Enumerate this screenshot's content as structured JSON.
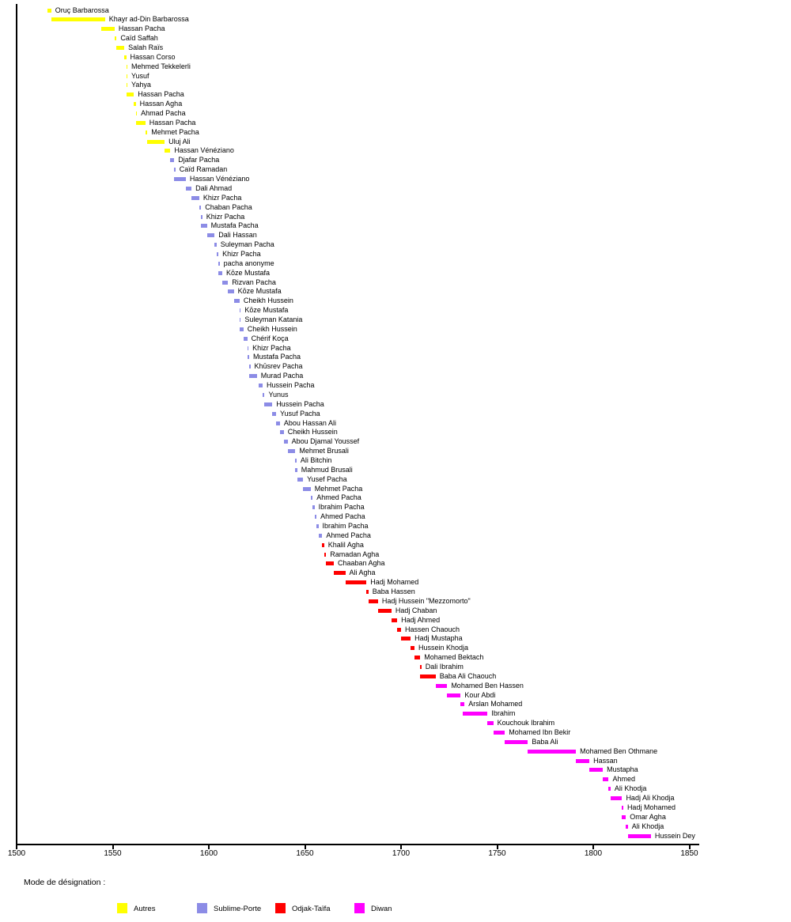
{
  "chart_data": {
    "type": "bar",
    "subtype": "horizontal-gantt-timeline",
    "title": "",
    "xlabel": "",
    "ylabel": "",
    "grid": false,
    "axis": {
      "min": 1500,
      "max": 1850,
      "tick_step": 50,
      "ticks": [
        1500,
        1550,
        1600,
        1650,
        1700,
        1750,
        1800,
        1850
      ]
    },
    "legend_title": "Mode de désignation :",
    "legend_position": "bottom",
    "legend": [
      {
        "label": "Autres",
        "color": "#FFFF00"
      },
      {
        "label": "Sublime-Porte",
        "color": "#8C8CE6"
      },
      {
        "label": "Odjak-Taïfa",
        "color": "#FF0000"
      },
      {
        "label": "Diwan",
        "color": "#FF00FF"
      }
    ],
    "series": [
      {
        "name": "Oruç Barbarossa",
        "start": 1516,
        "end": 1518,
        "group": 0
      },
      {
        "name": "Khayr ad-Din Barbarossa",
        "start": 1518,
        "end": 1546,
        "group": 0
      },
      {
        "name": "Hassan Pacha",
        "start": 1544,
        "end": 1551,
        "group": 0
      },
      {
        "name": "Caïd Saffah",
        "start": 1551,
        "end": 1552,
        "group": 0
      },
      {
        "name": "Salah Raïs",
        "start": 1552,
        "end": 1556,
        "group": 0
      },
      {
        "name": "Hassan Corso",
        "start": 1556,
        "end": 1557,
        "group": 0
      },
      {
        "name": "Mehmed Tekkelerli",
        "start": 1557,
        "end": 1557,
        "group": 0
      },
      {
        "name": "Yusuf",
        "start": 1557,
        "end": 1557,
        "group": 0
      },
      {
        "name": "Yahya",
        "start": 1557,
        "end": 1557,
        "group": 0
      },
      {
        "name": "Hassan Pacha",
        "start": 1557,
        "end": 1561,
        "group": 0
      },
      {
        "name": "Hassan Agha",
        "start": 1561,
        "end": 1562,
        "group": 0
      },
      {
        "name": "Ahmad Pacha",
        "start": 1562,
        "end": 1562,
        "group": 0
      },
      {
        "name": "Hassan Pacha",
        "start": 1562,
        "end": 1567,
        "group": 0
      },
      {
        "name": "Mehmet Pacha",
        "start": 1567,
        "end": 1568,
        "group": 0
      },
      {
        "name": "Uluj Ali",
        "start": 1568,
        "end": 1577,
        "group": 0
      },
      {
        "name": "Hassan Vénéziano",
        "start": 1577,
        "end": 1580,
        "group": 0
      },
      {
        "name": "Djafar Pacha",
        "start": 1580,
        "end": 1582,
        "group": 1
      },
      {
        "name": "Caïd Ramadan",
        "start": 1582,
        "end": 1582,
        "group": 1
      },
      {
        "name": "Hassan Vénéziano",
        "start": 1582,
        "end": 1588,
        "group": 1
      },
      {
        "name": "Dali Ahmad",
        "start": 1588,
        "end": 1591,
        "group": 1
      },
      {
        "name": "Khizr Pacha",
        "start": 1591,
        "end": 1595,
        "group": 1
      },
      {
        "name": "Chaban Pacha",
        "start": 1595,
        "end": 1596,
        "group": 1
      },
      {
        "name": "Khizr Pacha",
        "start": 1596,
        "end": 1596,
        "group": 1
      },
      {
        "name": "Mustafa Pacha",
        "start": 1596,
        "end": 1599,
        "group": 1
      },
      {
        "name": "Dali Hassan",
        "start": 1599,
        "end": 1603,
        "group": 1
      },
      {
        "name": "Suleyman Pacha",
        "start": 1603,
        "end": 1604,
        "group": 1
      },
      {
        "name": "Khizr Pacha",
        "start": 1604,
        "end": 1605,
        "group": 1
      },
      {
        "name": "pacha anonyme",
        "start": 1605,
        "end": 1605,
        "group": 1
      },
      {
        "name": "Kōze Mustafa",
        "start": 1605,
        "end": 1607,
        "group": 1
      },
      {
        "name": "Rizvan Pacha",
        "start": 1607,
        "end": 1610,
        "group": 1
      },
      {
        "name": "Kōze Mustafa",
        "start": 1610,
        "end": 1613,
        "group": 1
      },
      {
        "name": "Cheikh Hussein",
        "start": 1613,
        "end": 1616,
        "group": 1
      },
      {
        "name": "Kōze Mustafa",
        "start": 1616,
        "end": 1616,
        "group": 1
      },
      {
        "name": "Suleyman Katania",
        "start": 1616,
        "end": 1616,
        "group": 1
      },
      {
        "name": "Cheikh Hussein",
        "start": 1616,
        "end": 1618,
        "group": 1
      },
      {
        "name": "Chérif Koça",
        "start": 1618,
        "end": 1620,
        "group": 1
      },
      {
        "name": "Khizr Pacha",
        "start": 1620,
        "end": 1620,
        "group": 1
      },
      {
        "name": "Mustafa Pacha",
        "start": 1620,
        "end": 1621,
        "group": 1
      },
      {
        "name": "Khūsrev Pacha",
        "start": 1621,
        "end": 1621,
        "group": 1
      },
      {
        "name": "Murad Pacha",
        "start": 1621,
        "end": 1625,
        "group": 1
      },
      {
        "name": "Hussein Pacha",
        "start": 1626,
        "end": 1628,
        "group": 1
      },
      {
        "name": "Yunus",
        "start": 1628,
        "end": 1629,
        "group": 1
      },
      {
        "name": "Hussein Pacha",
        "start": 1629,
        "end": 1633,
        "group": 1
      },
      {
        "name": "Yusuf Pacha",
        "start": 1633,
        "end": 1635,
        "group": 1
      },
      {
        "name": "Abou Hassan Ali",
        "start": 1635,
        "end": 1637,
        "group": 1
      },
      {
        "name": "Cheikh Hussein",
        "start": 1637,
        "end": 1639,
        "group": 1
      },
      {
        "name": "Abou Djamal Youssef",
        "start": 1639,
        "end": 1641,
        "group": 1
      },
      {
        "name": "Mehmet Brusali",
        "start": 1641,
        "end": 1645,
        "group": 1
      },
      {
        "name": "Ali Bitchin",
        "start": 1645,
        "end": 1645,
        "group": 1
      },
      {
        "name": "Mahmud Brusali",
        "start": 1645,
        "end": 1646,
        "group": 1
      },
      {
        "name": "Yusef Pacha",
        "start": 1646,
        "end": 1649,
        "group": 1
      },
      {
        "name": "Mehmet Pacha",
        "start": 1649,
        "end": 1653,
        "group": 1
      },
      {
        "name": "Ahmed Pacha",
        "start": 1653,
        "end": 1654,
        "group": 1
      },
      {
        "name": "Ibrahim Pacha",
        "start": 1654,
        "end": 1655,
        "group": 1
      },
      {
        "name": "Ahmed Pacha",
        "start": 1655,
        "end": 1656,
        "group": 1
      },
      {
        "name": "Ibrahim Pacha",
        "start": 1656,
        "end": 1657,
        "group": 1
      },
      {
        "name": "Ahmed Pacha",
        "start": 1657,
        "end": 1659,
        "group": 1
      },
      {
        "name": "Khalil Agha",
        "start": 1659,
        "end": 1660,
        "group": 2
      },
      {
        "name": "Ramadan Agha",
        "start": 1660,
        "end": 1661,
        "group": 2
      },
      {
        "name": "Chaaban Agha",
        "start": 1661,
        "end": 1665,
        "group": 2
      },
      {
        "name": "Ali Agha",
        "start": 1665,
        "end": 1671,
        "group": 2
      },
      {
        "name": "Hadj Mohamed",
        "start": 1671,
        "end": 1682,
        "group": 2
      },
      {
        "name": "Baba Hassen",
        "start": 1682,
        "end": 1683,
        "group": 2
      },
      {
        "name": "Hadj Hussein \"Mezzomorto\"",
        "start": 1683,
        "end": 1688,
        "group": 2
      },
      {
        "name": "Hadj Chaban",
        "start": 1688,
        "end": 1695,
        "group": 2
      },
      {
        "name": "Hadj Ahmed",
        "start": 1695,
        "end": 1698,
        "group": 2
      },
      {
        "name": "Hassen Chaouch",
        "start": 1698,
        "end": 1700,
        "group": 2
      },
      {
        "name": "Hadj Mustapha",
        "start": 1700,
        "end": 1705,
        "group": 2
      },
      {
        "name": "Hussein Khodja",
        "start": 1705,
        "end": 1707,
        "group": 2
      },
      {
        "name": "Mohamed Bektach",
        "start": 1707,
        "end": 1710,
        "group": 2
      },
      {
        "name": "Dali Ibrahim",
        "start": 1710,
        "end": 1710,
        "group": 2
      },
      {
        "name": "Baba Ali Chaouch",
        "start": 1710,
        "end": 1718,
        "group": 2
      },
      {
        "name": "Mohamed Ben Hassen",
        "start": 1718,
        "end": 1724,
        "group": 3
      },
      {
        "name": "Kour Abdi",
        "start": 1724,
        "end": 1731,
        "group": 3
      },
      {
        "name": "Arslan Mohamed",
        "start": 1731,
        "end": 1733,
        "group": 3
      },
      {
        "name": "Ibrahim",
        "start": 1732,
        "end": 1745,
        "group": 3
      },
      {
        "name": "Kouchouk Ibrahim",
        "start": 1745,
        "end": 1748,
        "group": 3
      },
      {
        "name": "Mohamed Ibn Bekir",
        "start": 1748,
        "end": 1754,
        "group": 3
      },
      {
        "name": "Baba Ali",
        "start": 1754,
        "end": 1766,
        "group": 3
      },
      {
        "name": "Mohamed Ben Othmane",
        "start": 1766,
        "end": 1791,
        "group": 3
      },
      {
        "name": "Hassan",
        "start": 1791,
        "end": 1798,
        "group": 3
      },
      {
        "name": "Mustapha",
        "start": 1798,
        "end": 1805,
        "group": 3
      },
      {
        "name": "Ahmed",
        "start": 1805,
        "end": 1808,
        "group": 3
      },
      {
        "name": "Ali Khodja",
        "start": 1808,
        "end": 1809,
        "group": 3
      },
      {
        "name": "Hadj Ali Khodja",
        "start": 1809,
        "end": 1815,
        "group": 3
      },
      {
        "name": "Hadj Mohamed",
        "start": 1815,
        "end": 1815,
        "group": 3
      },
      {
        "name": "Omar Agha",
        "start": 1815,
        "end": 1817,
        "group": 3
      },
      {
        "name": "Ali Khodja",
        "start": 1817,
        "end": 1818,
        "group": 3
      },
      {
        "name": "Hussein Dey",
        "start": 1818,
        "end": 1830,
        "group": 3
      }
    ]
  }
}
